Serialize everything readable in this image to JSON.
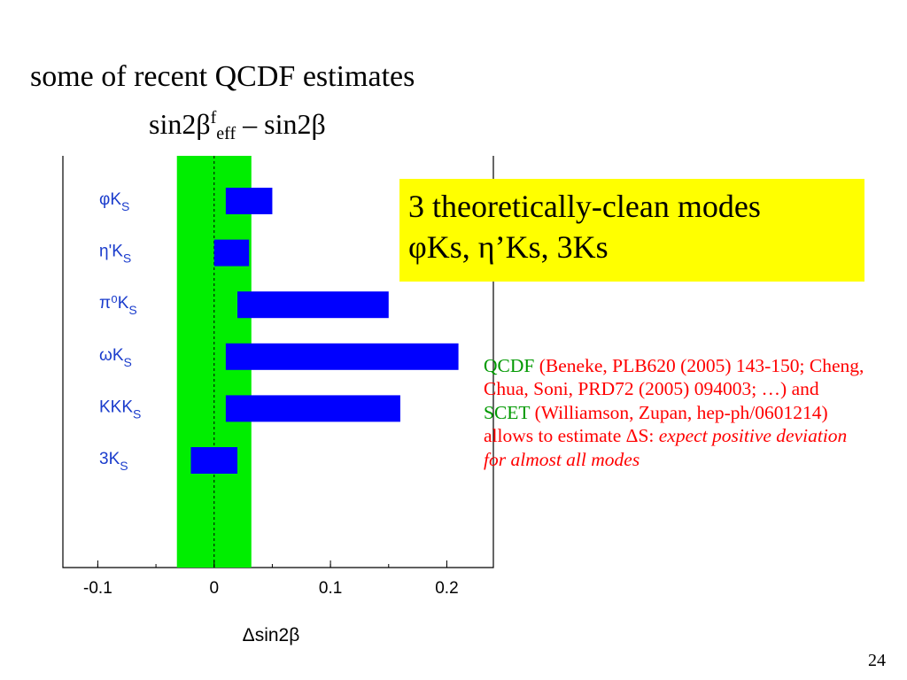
{
  "slide": {
    "title_line1": "some of recent QCDF estimates",
    "title_line2_base": "sin2β",
    "title_line2_sup": "f",
    "title_line2_sub": "eff",
    "title_line2_rest": " – sin2β",
    "page_number": "24"
  },
  "callout": {
    "line1": "3 theoretically-clean modes",
    "line2": "φKs, η’Ks, 3Ks"
  },
  "refs": {
    "qcdf": "QCDF",
    "text1": " (Beneke, PLB620 (2005) 143-150; Cheng, Chua, Soni, PRD72 (2005) 094003; …) and ",
    "scet": "SCET",
    "text2": " (Williamson, Zupan, hep-ph/0601214) allows to estimate ΔS:",
    "text3_italic": " expect positive deviation for almost all modes"
  },
  "colors": {
    "bar": "#0000ff",
    "band": "#00ee00",
    "callout_bg": "#ffff00",
    "label": "#1a3ccc",
    "ref_text": "#ff0000",
    "ref_highlight": "#009900"
  },
  "chart_data": {
    "type": "bar",
    "orientation": "horizontal",
    "xlabel": "Δsin2β",
    "xlim": [
      -0.13,
      0.24
    ],
    "xticks": [
      -0.1,
      0,
      0.1,
      0.2
    ],
    "xtick_labels": [
      "-0.1",
      "0",
      "0.1",
      "0.2"
    ],
    "band": [
      -0.032,
      0.032
    ],
    "reference_line": 0,
    "categories": [
      {
        "main": "φK",
        "sub": "S"
      },
      {
        "main": "η'K",
        "sub": "S"
      },
      {
        "main": "π⁰K",
        "sub": "S"
      },
      {
        "main": "ωK",
        "sub": "S"
      },
      {
        "main": "KKK",
        "sub": "S"
      },
      {
        "main": "3K",
        "sub": "S"
      }
    ],
    "ranges": [
      [
        0.01,
        0.05
      ],
      [
        0.0,
        0.03
      ],
      [
        0.02,
        0.15
      ],
      [
        0.01,
        0.21
      ],
      [
        0.01,
        0.16
      ],
      [
        -0.02,
        0.02
      ]
    ]
  }
}
